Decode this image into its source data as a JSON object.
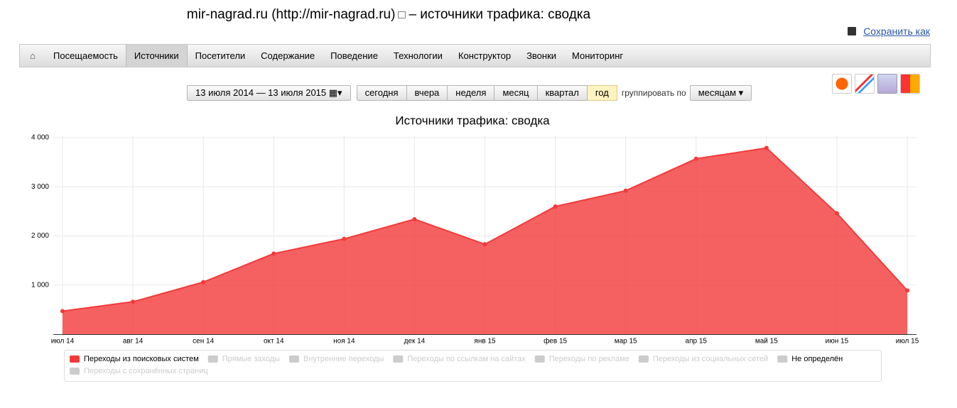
{
  "header": {
    "site": "mir-nagrad.ru (http://mir-nagrad.ru)",
    "suffix": "– источники трафика: сводка",
    "save": "Сохранить как"
  },
  "nav": {
    "items": [
      "Посещаемость",
      "Источники",
      "Посетители",
      "Содержание",
      "Поведение",
      "Технологии",
      "Конструктор",
      "Звонки",
      "Мониторинг"
    ],
    "active": 1
  },
  "toolbar": {
    "date_range": "13 июля 2014 — 13 июля 2015",
    "periods": [
      "сегодня",
      "вчера",
      "неделя",
      "месяц",
      "квартал",
      "год"
    ],
    "active": 5,
    "group_label": "группировать по",
    "group_value": "месяцам"
  },
  "chart_data": {
    "type": "area",
    "title": "Источники трафика: сводка",
    "categories": [
      "июл 14",
      "авг 14",
      "сен 14",
      "окт 14",
      "ноя 14",
      "дек 14",
      "янв 15",
      "фев 15",
      "мар 15",
      "апр 15",
      "май 15",
      "июн 15",
      "июл 15"
    ],
    "series": [
      {
        "name": "Переходы из поисковых систем",
        "color": "#f23a3a",
        "visible": true,
        "values": [
          470,
          660,
          1060,
          1640,
          1940,
          2340,
          1830,
          2600,
          2920,
          3570,
          3790,
          2460,
          890
        ]
      },
      {
        "name": "Прямые заходы",
        "color": "#cccccc",
        "visible": false
      },
      {
        "name": "Внутренние переходы",
        "color": "#cccccc",
        "visible": false
      },
      {
        "name": "Переходы по ссылкам на сайтах",
        "color": "#cccccc",
        "visible": false
      },
      {
        "name": "Переходы по рекламе",
        "color": "#cccccc",
        "visible": false
      },
      {
        "name": "Переходы из социальных сетей",
        "color": "#cccccc",
        "visible": false
      },
      {
        "name": "Не определён",
        "color": "#cccccc",
        "visible": false
      },
      {
        "name": "Переходы с сохранённых страниц",
        "color": "#cccccc",
        "visible": false
      }
    ],
    "ylim": [
      0,
      4000
    ],
    "yticks": [
      {
        "value": 1000,
        "label": "1 000"
      },
      {
        "value": 2000,
        "label": "2 000"
      },
      {
        "value": 3000,
        "label": "3 000"
      },
      {
        "value": 4000,
        "label": "4 000"
      }
    ],
    "grid": true
  }
}
